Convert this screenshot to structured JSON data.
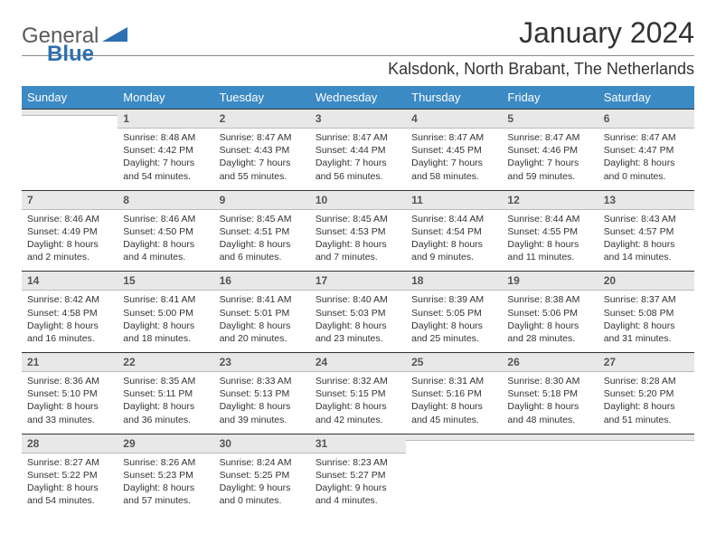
{
  "logo": {
    "text1": "General",
    "text2": "Blue"
  },
  "title": "January 2024",
  "location": "Kalsdonk, North Brabant, The Netherlands",
  "colors": {
    "header_bg": "#3b8ac4",
    "header_text": "#ffffff",
    "daynum_bg": "#e8e8e8",
    "border": "#333333",
    "text": "#333333",
    "logo_gray": "#5a5a5a",
    "logo_blue": "#2c6fb3"
  },
  "fonts": {
    "title_size": 32,
    "location_size": 18,
    "dayhead_size": 13,
    "daynum_size": 12,
    "body_size": 10.5
  },
  "day_headers": [
    "Sunday",
    "Monday",
    "Tuesday",
    "Wednesday",
    "Thursday",
    "Friday",
    "Saturday"
  ],
  "weeks": [
    [
      {
        "num": "",
        "sunrise": "",
        "sunset": "",
        "daylight": ""
      },
      {
        "num": "1",
        "sunrise": "Sunrise: 8:48 AM",
        "sunset": "Sunset: 4:42 PM",
        "daylight": "Daylight: 7 hours and 54 minutes."
      },
      {
        "num": "2",
        "sunrise": "Sunrise: 8:47 AM",
        "sunset": "Sunset: 4:43 PM",
        "daylight": "Daylight: 7 hours and 55 minutes."
      },
      {
        "num": "3",
        "sunrise": "Sunrise: 8:47 AM",
        "sunset": "Sunset: 4:44 PM",
        "daylight": "Daylight: 7 hours and 56 minutes."
      },
      {
        "num": "4",
        "sunrise": "Sunrise: 8:47 AM",
        "sunset": "Sunset: 4:45 PM",
        "daylight": "Daylight: 7 hours and 58 minutes."
      },
      {
        "num": "5",
        "sunrise": "Sunrise: 8:47 AM",
        "sunset": "Sunset: 4:46 PM",
        "daylight": "Daylight: 7 hours and 59 minutes."
      },
      {
        "num": "6",
        "sunrise": "Sunrise: 8:47 AM",
        "sunset": "Sunset: 4:47 PM",
        "daylight": "Daylight: 8 hours and 0 minutes."
      }
    ],
    [
      {
        "num": "7",
        "sunrise": "Sunrise: 8:46 AM",
        "sunset": "Sunset: 4:49 PM",
        "daylight": "Daylight: 8 hours and 2 minutes."
      },
      {
        "num": "8",
        "sunrise": "Sunrise: 8:46 AM",
        "sunset": "Sunset: 4:50 PM",
        "daylight": "Daylight: 8 hours and 4 minutes."
      },
      {
        "num": "9",
        "sunrise": "Sunrise: 8:45 AM",
        "sunset": "Sunset: 4:51 PM",
        "daylight": "Daylight: 8 hours and 6 minutes."
      },
      {
        "num": "10",
        "sunrise": "Sunrise: 8:45 AM",
        "sunset": "Sunset: 4:53 PM",
        "daylight": "Daylight: 8 hours and 7 minutes."
      },
      {
        "num": "11",
        "sunrise": "Sunrise: 8:44 AM",
        "sunset": "Sunset: 4:54 PM",
        "daylight": "Daylight: 8 hours and 9 minutes."
      },
      {
        "num": "12",
        "sunrise": "Sunrise: 8:44 AM",
        "sunset": "Sunset: 4:55 PM",
        "daylight": "Daylight: 8 hours and 11 minutes."
      },
      {
        "num": "13",
        "sunrise": "Sunrise: 8:43 AM",
        "sunset": "Sunset: 4:57 PM",
        "daylight": "Daylight: 8 hours and 14 minutes."
      }
    ],
    [
      {
        "num": "14",
        "sunrise": "Sunrise: 8:42 AM",
        "sunset": "Sunset: 4:58 PM",
        "daylight": "Daylight: 8 hours and 16 minutes."
      },
      {
        "num": "15",
        "sunrise": "Sunrise: 8:41 AM",
        "sunset": "Sunset: 5:00 PM",
        "daylight": "Daylight: 8 hours and 18 minutes."
      },
      {
        "num": "16",
        "sunrise": "Sunrise: 8:41 AM",
        "sunset": "Sunset: 5:01 PM",
        "daylight": "Daylight: 8 hours and 20 minutes."
      },
      {
        "num": "17",
        "sunrise": "Sunrise: 8:40 AM",
        "sunset": "Sunset: 5:03 PM",
        "daylight": "Daylight: 8 hours and 23 minutes."
      },
      {
        "num": "18",
        "sunrise": "Sunrise: 8:39 AM",
        "sunset": "Sunset: 5:05 PM",
        "daylight": "Daylight: 8 hours and 25 minutes."
      },
      {
        "num": "19",
        "sunrise": "Sunrise: 8:38 AM",
        "sunset": "Sunset: 5:06 PM",
        "daylight": "Daylight: 8 hours and 28 minutes."
      },
      {
        "num": "20",
        "sunrise": "Sunrise: 8:37 AM",
        "sunset": "Sunset: 5:08 PM",
        "daylight": "Daylight: 8 hours and 31 minutes."
      }
    ],
    [
      {
        "num": "21",
        "sunrise": "Sunrise: 8:36 AM",
        "sunset": "Sunset: 5:10 PM",
        "daylight": "Daylight: 8 hours and 33 minutes."
      },
      {
        "num": "22",
        "sunrise": "Sunrise: 8:35 AM",
        "sunset": "Sunset: 5:11 PM",
        "daylight": "Daylight: 8 hours and 36 minutes."
      },
      {
        "num": "23",
        "sunrise": "Sunrise: 8:33 AM",
        "sunset": "Sunset: 5:13 PM",
        "daylight": "Daylight: 8 hours and 39 minutes."
      },
      {
        "num": "24",
        "sunrise": "Sunrise: 8:32 AM",
        "sunset": "Sunset: 5:15 PM",
        "daylight": "Daylight: 8 hours and 42 minutes."
      },
      {
        "num": "25",
        "sunrise": "Sunrise: 8:31 AM",
        "sunset": "Sunset: 5:16 PM",
        "daylight": "Daylight: 8 hours and 45 minutes."
      },
      {
        "num": "26",
        "sunrise": "Sunrise: 8:30 AM",
        "sunset": "Sunset: 5:18 PM",
        "daylight": "Daylight: 8 hours and 48 minutes."
      },
      {
        "num": "27",
        "sunrise": "Sunrise: 8:28 AM",
        "sunset": "Sunset: 5:20 PM",
        "daylight": "Daylight: 8 hours and 51 minutes."
      }
    ],
    [
      {
        "num": "28",
        "sunrise": "Sunrise: 8:27 AM",
        "sunset": "Sunset: 5:22 PM",
        "daylight": "Daylight: 8 hours and 54 minutes."
      },
      {
        "num": "29",
        "sunrise": "Sunrise: 8:26 AM",
        "sunset": "Sunset: 5:23 PM",
        "daylight": "Daylight: 8 hours and 57 minutes."
      },
      {
        "num": "30",
        "sunrise": "Sunrise: 8:24 AM",
        "sunset": "Sunset: 5:25 PM",
        "daylight": "Daylight: 9 hours and 0 minutes."
      },
      {
        "num": "31",
        "sunrise": "Sunrise: 8:23 AM",
        "sunset": "Sunset: 5:27 PM",
        "daylight": "Daylight: 9 hours and 4 minutes."
      },
      {
        "num": "",
        "sunrise": "",
        "sunset": "",
        "daylight": ""
      },
      {
        "num": "",
        "sunrise": "",
        "sunset": "",
        "daylight": ""
      },
      {
        "num": "",
        "sunrise": "",
        "sunset": "",
        "daylight": ""
      }
    ]
  ]
}
